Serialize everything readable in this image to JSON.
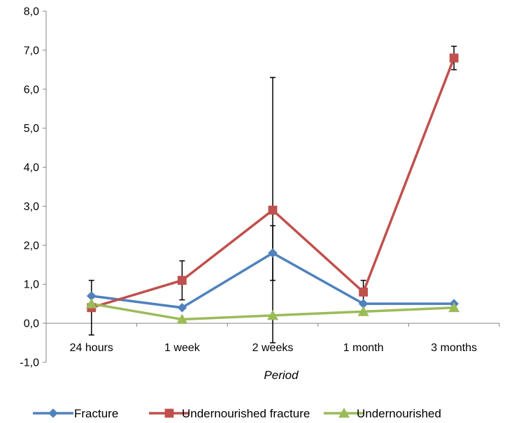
{
  "chart_data": {
    "type": "line",
    "xlabel": "Period",
    "ylabel": "",
    "categories": [
      "24 hours",
      "1 week",
      "2 weeks",
      "1 month",
      "3 months"
    ],
    "ylim": [
      -1.0,
      8.0
    ],
    "yticks": [
      "-1,0",
      "0,0",
      "1,0",
      "2,0",
      "3,0",
      "4,0",
      "5,0",
      "6,0",
      "7,0",
      "8,0"
    ],
    "grid": false,
    "legend_position": "bottom",
    "series": [
      {
        "name": "Fracture",
        "color": "#4F81BD",
        "marker": "diamond",
        "values": [
          0.7,
          0.4,
          1.8,
          0.5,
          0.5
        ],
        "errors": [
          null,
          null,
          0.7,
          null,
          null
        ]
      },
      {
        "name": "Undernourished fracture",
        "color": "#C0504D",
        "marker": "square",
        "values": [
          0.4,
          1.1,
          2.9,
          0.8,
          6.8
        ],
        "errors": [
          0.7,
          0.5,
          3.4,
          0.3,
          0.3
        ]
      },
      {
        "name": "Undernourished",
        "color": "#9BBB59",
        "marker": "triangle",
        "values": [
          0.5,
          0.1,
          0.2,
          0.3,
          0.4
        ],
        "errors": [
          null,
          null,
          null,
          null,
          null
        ]
      }
    ]
  }
}
